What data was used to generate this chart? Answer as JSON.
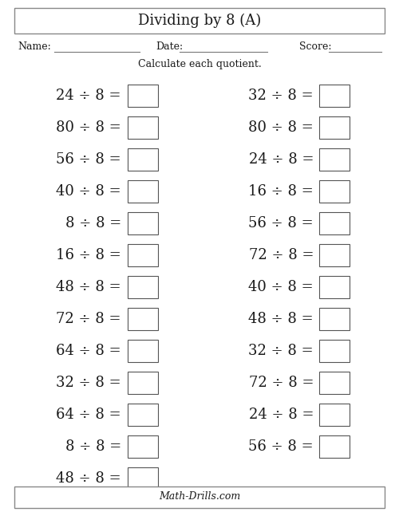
{
  "title": "Dividing by 8 (A)",
  "name_label": "Name:",
  "date_label": "Date:",
  "score_label": "Score:",
  "instruction": "Calculate each quotient.",
  "footer": "Math-Drills.com",
  "left_column": [
    "24 ÷ 8 =",
    "80 ÷ 8 =",
    "56 ÷ 8 =",
    "40 ÷ 8 =",
    "8 ÷ 8 =",
    "16 ÷ 8 =",
    "48 ÷ 8 =",
    "72 ÷ 8 =",
    "64 ÷ 8 =",
    "32 ÷ 8 =",
    "64 ÷ 8 =",
    "8 ÷ 8 =",
    "48 ÷ 8 ="
  ],
  "right_column": [
    "32 ÷ 8 =",
    "80 ÷ 8 =",
    "24 ÷ 8 =",
    "16 ÷ 8 =",
    "56 ÷ 8 =",
    "72 ÷ 8 =",
    "40 ÷ 8 =",
    "48 ÷ 8 =",
    "32 ÷ 8 =",
    "72 ÷ 8 =",
    "24 ÷ 8 =",
    "56 ÷ 8 ="
  ],
  "bg_color": "#ffffff",
  "border_color": "#888888",
  "text_color": "#1a1a1a",
  "title_fontsize": 13,
  "label_fontsize": 9,
  "question_fontsize": 13,
  "footer_fontsize": 9,
  "figwidth": 5.0,
  "figheight": 6.47,
  "dpi": 100
}
